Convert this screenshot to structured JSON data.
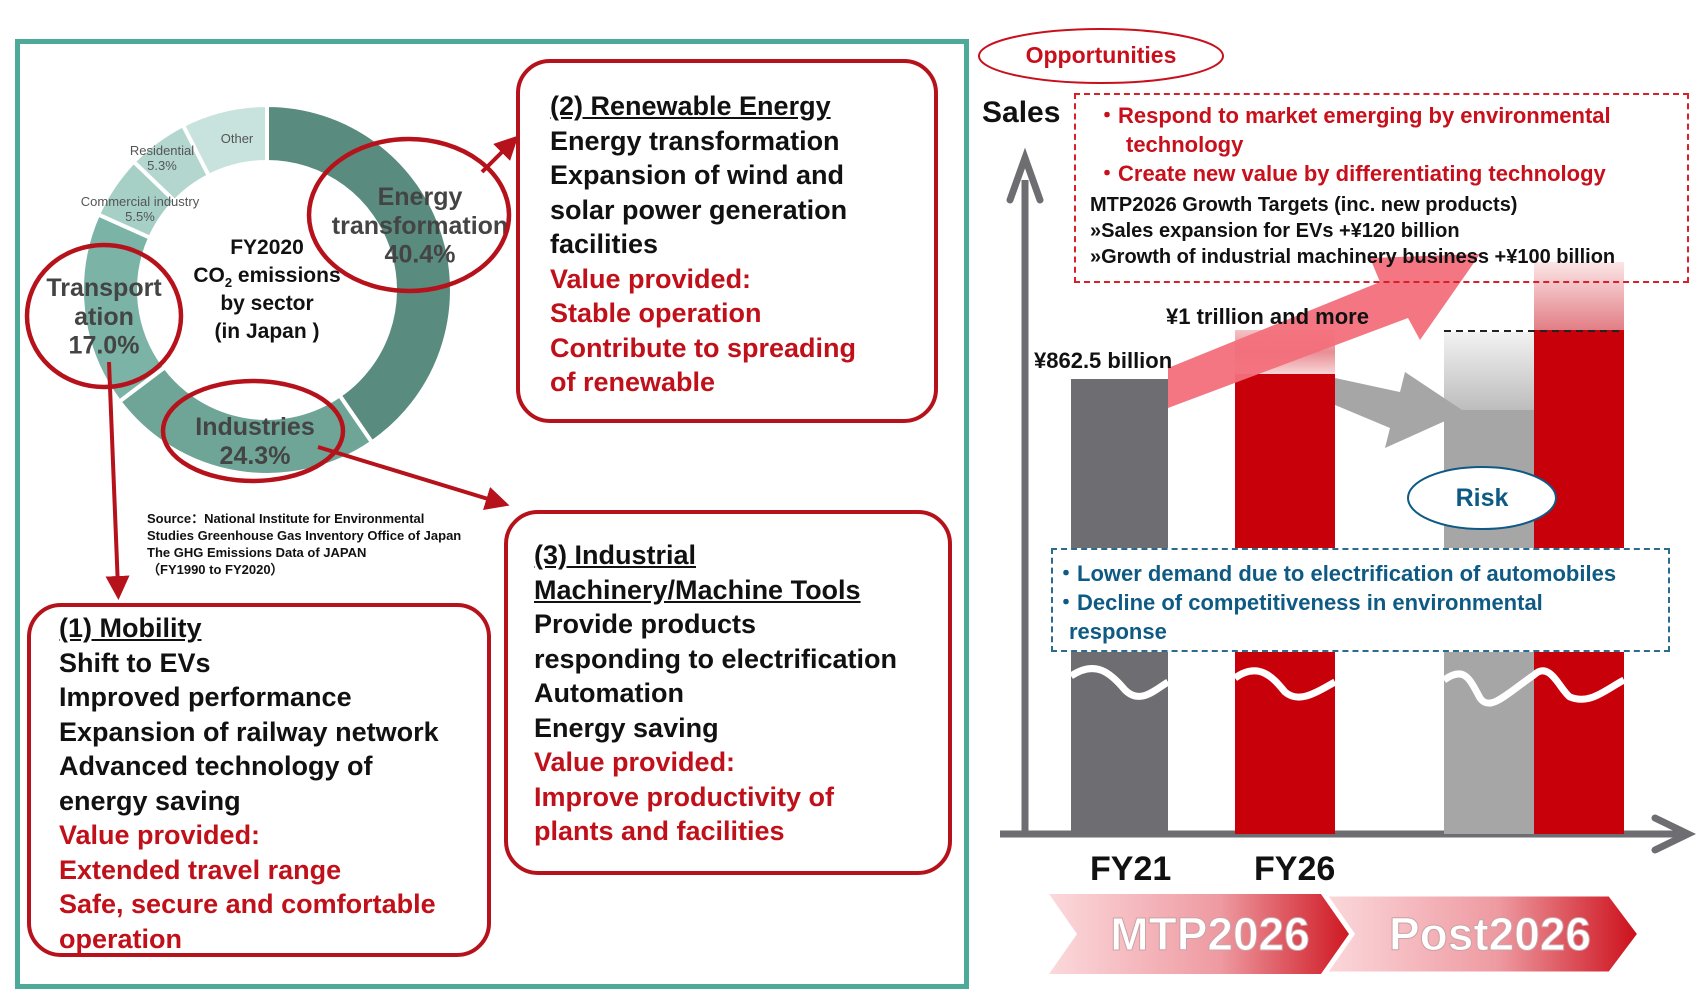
{
  "donut": {
    "center_title": "FY2020",
    "center_line2_prefix": "CO",
    "center_line2_sub": "2",
    "center_line2_suffix": " emissions",
    "center_line3": "by sector",
    "center_line4": "(in Japan )",
    "segments": [
      {
        "label": "Energy transformation",
        "label_lines": [
          "Energy",
          "transformation"
        ],
        "value": 40.4,
        "value_label": "40.4%",
        "color": "#5a8b7f",
        "highlighted": true
      },
      {
        "label": "Industries",
        "label_lines": [
          "Industries"
        ],
        "value": 24.3,
        "value_label": "24.3%",
        "color": "#6ea597",
        "highlighted": true
      },
      {
        "label": "Transportation",
        "label_lines": [
          "Transport",
          "ation"
        ],
        "value": 17.0,
        "value_label": "17.0%",
        "color": "#7bb3a6",
        "highlighted": true
      },
      {
        "label": "Commercial industry",
        "label_lines": [
          "Commercial industry"
        ],
        "value": 5.5,
        "value_label": "5.5%",
        "color": "#a6cfc6",
        "highlighted": false
      },
      {
        "label": "Residential",
        "label_lines": [
          "Residential"
        ],
        "value": 5.3,
        "value_label": "5.3%",
        "color": "#b3d7cf",
        "highlighted": false
      },
      {
        "label": "Other",
        "label_lines": [
          "Other"
        ],
        "value": 7.5,
        "value_label": "",
        "color": "#c8e3dd",
        "highlighted": false
      }
    ]
  },
  "source": [
    "Source：National Institute for Environmental",
    "Studies Greenhouse Gas Inventory Office of Japan",
    "The GHG Emissions Data of JAPAN",
    "（FY1990 to FY2020）"
  ],
  "boxes": {
    "renewable": {
      "title": "(2) Renewable Energy",
      "lines": [
        "Energy transformation",
        "Expansion of wind and",
        "solar power generation",
        "facilities"
      ],
      "value_lines": [
        "Value provided:",
        "Stable operation",
        "Contribute to spreading",
        "of renewable"
      ]
    },
    "industrial": {
      "title_lines": [
        "(3) Industrial",
        "Machinery/Machine Tools"
      ],
      "lines": [
        "Provide products",
        "responding to electrification",
        "Automation",
        "Energy saving"
      ],
      "value_lines": [
        "Value provided:",
        "Improve productivity of",
        "plants and facilities"
      ]
    },
    "mobility": {
      "title": "(1) Mobility",
      "lines": [
        "Shift to EVs",
        "Improved performance",
        "Expansion of railway network",
        "Advanced technology of",
        "energy saving"
      ],
      "value_lines": [
        "Value provided:",
        "Extended travel range",
        "Safe, secure and comfortable",
        "operation"
      ]
    }
  },
  "right": {
    "opportunities_label": "Opportunities",
    "axis_label": "Sales",
    "opportunities": [
      "・Respond to market emerging by environmental",
      "technology",
      "・Create new value by differentiating technology"
    ],
    "mtp_targets": [
      "MTP2026 Growth Targets (inc. new products)",
      "»Sales expansion for EVs +¥120 billion",
      "»Growth of industrial machinery business +¥100 billion"
    ],
    "risk_label": "Risk",
    "risks": [
      "・Lower demand due to electrification of automobiles",
      "・Decline of competitiveness in environmental",
      "response"
    ],
    "bar_labels": {
      "fy21_value": "¥862.5 billion",
      "fy26_value": "¥1 trillion and more"
    },
    "x_labels": [
      "FY21",
      "FY26"
    ],
    "phases": [
      "MTP2026",
      "Post2026"
    ],
    "colors": {
      "accent_red": "#c8000a",
      "gray": "#6d6d72",
      "light_gray": "#a6a6a6",
      "teal": "#4daa99",
      "risk_blue": "#0f5a84"
    }
  }
}
